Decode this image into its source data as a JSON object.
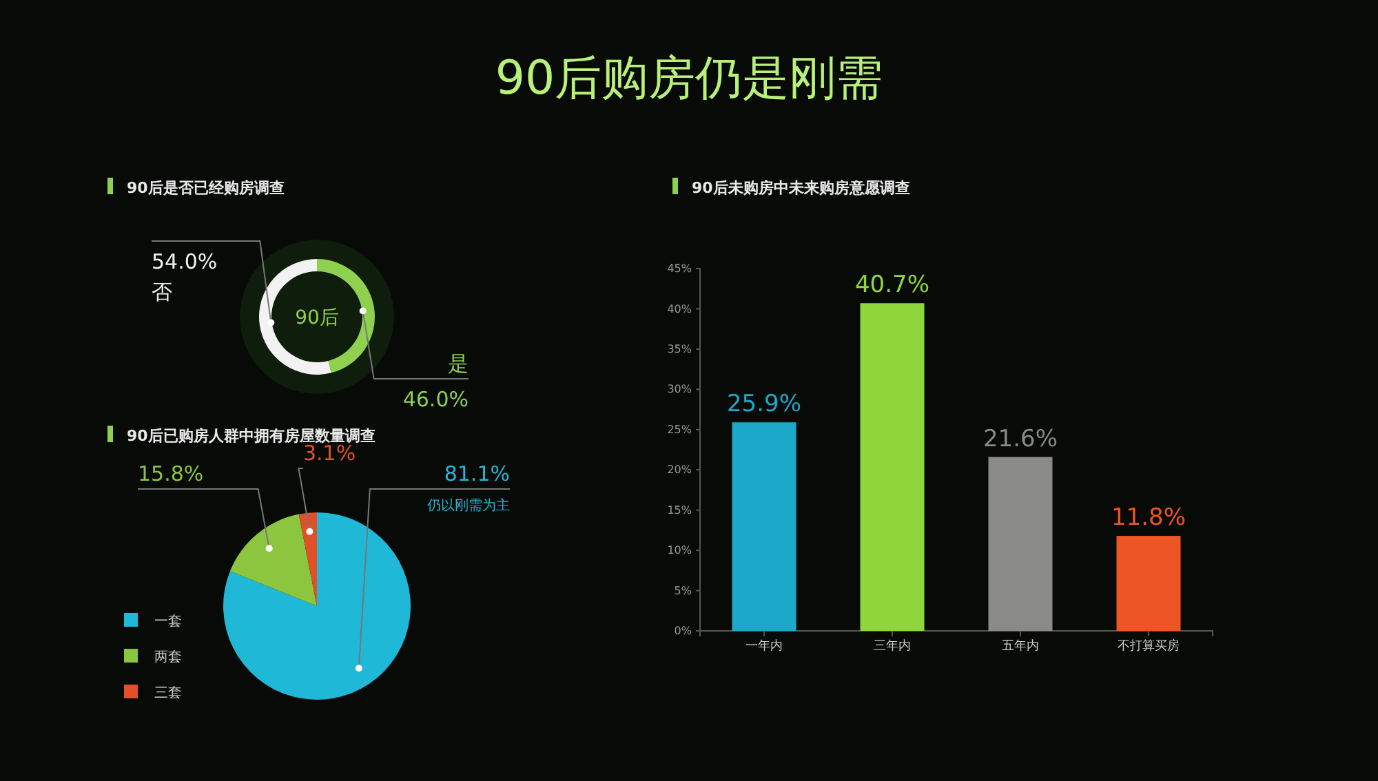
{
  "chart_data": [
    {
      "type": "other",
      "title": "90后购房仍是刚需"
    },
    {
      "type": "donut",
      "title": "90后是否已经购房调查",
      "categories": [
        "是",
        "否"
      ],
      "values": [
        46.0,
        54.0
      ],
      "colors": [
        "#8fd14f",
        "#f2f2f2"
      ],
      "value_labels": [
        "46.0%",
        "54.0%"
      ],
      "annotations": [
        "90后"
      ]
    },
    {
      "type": "pie",
      "title": "90后已购房人群中拥有房屋数量调查",
      "categories": [
        "一套",
        "两套",
        "三套"
      ],
      "values": [
        81.1,
        15.8,
        3.1
      ],
      "colors": [
        "#1fb8d6",
        "#8cc63f",
        "#e2502a"
      ],
      "value_labels": [
        "81.1%",
        "15.8%",
        "3.1%"
      ],
      "legend": "bottom left",
      "annotations": [
        "仍以刚需为主"
      ]
    },
    {
      "type": "bar",
      "title": "90后未购房中未来购房意愿调查",
      "categories": [
        "一年内",
        "三年内",
        "五年内",
        "不打算买房"
      ],
      "values": [
        25.9,
        40.7,
        21.6,
        11.8
      ],
      "colors": [
        "#1aa9c9",
        "#8fd63a",
        "#8a8a86",
        "#ee5524"
      ],
      "value_labels": [
        "25.9%",
        "40.7%",
        "21.6%",
        "11.8%"
      ],
      "ylim": [
        0,
        45
      ],
      "yticks": [
        {
          "value": 0,
          "label": "0%"
        },
        {
          "value": 5,
          "label": "5%"
        },
        {
          "value": 10,
          "label": "10%"
        },
        {
          "value": 15,
          "label": "15%"
        },
        {
          "value": 20,
          "label": "20%"
        },
        {
          "value": 25,
          "label": "25%"
        },
        {
          "value": 30,
          "label": "30%"
        },
        {
          "value": 35,
          "label": "35%"
        },
        {
          "value": 40,
          "label": "40%"
        },
        {
          "value": 45,
          "label": "45%"
        }
      ]
    }
  ]
}
